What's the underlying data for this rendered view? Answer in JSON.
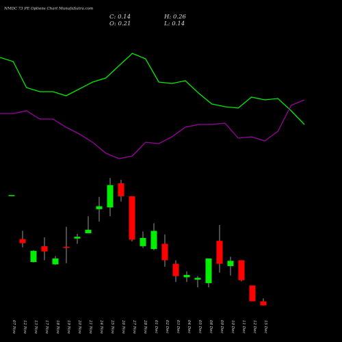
{
  "chart_data": {
    "type": "candlestick",
    "title": "NMDC 73 PE Options  Chart MunafaSutra.com",
    "ohlc_labels": [
      "C: 0.14",
      "H: 0.26",
      "O: 0.21",
      "L: 0.14"
    ],
    "categories": [
      "07 Nov",
      "12 Nov",
      "13 Nov",
      "17 Nov",
      "18 Nov",
      "19 Nov",
      "20 Nov",
      "21 Nov",
      "24 Nov",
      "25 Nov",
      "26 Nov",
      "27 Nov",
      "28 Nov",
      "01 Dec",
      "02 Dec",
      "03 Dec",
      "04 Dec",
      "05 Dec",
      "08 Dec",
      "09 Dec",
      "10 Dec",
      "11 Dec",
      "12 Dec",
      "15 Dec"
    ],
    "open": [
      2.02,
      1.27,
      0.88,
      1.15,
      0.84,
      1.14,
      1.28,
      1.37,
      1.78,
      1.81,
      2.22,
      2.0,
      1.15,
      1.1,
      1.19,
      0.85,
      0.62,
      0.58,
      0.52,
      1.24,
      0.81,
      0.91,
      0.48,
      0.21
    ],
    "high": [
      2.02,
      1.41,
      1.08,
      1.3,
      0.98,
      1.48,
      1.36,
      1.66,
      1.99,
      2.31,
      2.28,
      2.0,
      1.4,
      1.54,
      1.35,
      0.91,
      0.72,
      0.64,
      0.94,
      1.51,
      0.97,
      0.91,
      0.48,
      0.26
    ],
    "low": [
      2.02,
      1.13,
      0.87,
      0.91,
      0.83,
      0.86,
      1.19,
      1.37,
      1.57,
      1.66,
      1.91,
      1.23,
      1.12,
      1.08,
      0.8,
      0.54,
      0.54,
      0.45,
      0.45,
      0.7,
      0.65,
      0.55,
      0.21,
      0.14
    ],
    "close": [
      2.02,
      1.2,
      1.07,
      1.06,
      0.94,
      1.12,
      1.31,
      1.43,
      1.83,
      2.19,
      2.0,
      1.26,
      1.29,
      1.41,
      0.91,
      0.64,
      0.66,
      0.61,
      0.94,
      0.85,
      0.9,
      0.57,
      0.21,
      0.14
    ],
    "up_color": "#00ee00",
    "down_color": "#ff0000",
    "ylim": [
      0.1,
      2.43
    ],
    "lines": [
      {
        "color": "#00ee00",
        "values": [
          0.88,
          0.85,
          0.66,
          0.63,
          0.63,
          0.6,
          0.65,
          0.7,
          0.73,
          0.82,
          0.91,
          0.87,
          0.7,
          0.69,
          0.71,
          0.62,
          0.54,
          0.52,
          0.51,
          0.59,
          0.57,
          0.58,
          0.49,
          0.39
        ]
      },
      {
        "color": "#a000a0",
        "values": [
          0.47,
          0.47,
          0.49,
          0.43,
          0.43,
          0.37,
          0.32,
          0.26,
          0.18,
          0.14,
          0.16,
          0.26,
          0.25,
          0.3,
          0.37,
          0.39,
          0.39,
          0.4,
          0.29,
          0.3,
          0.27,
          0.34,
          0.53,
          0.57
        ]
      }
    ],
    "lines_ylim": [
      0,
      1
    ]
  }
}
